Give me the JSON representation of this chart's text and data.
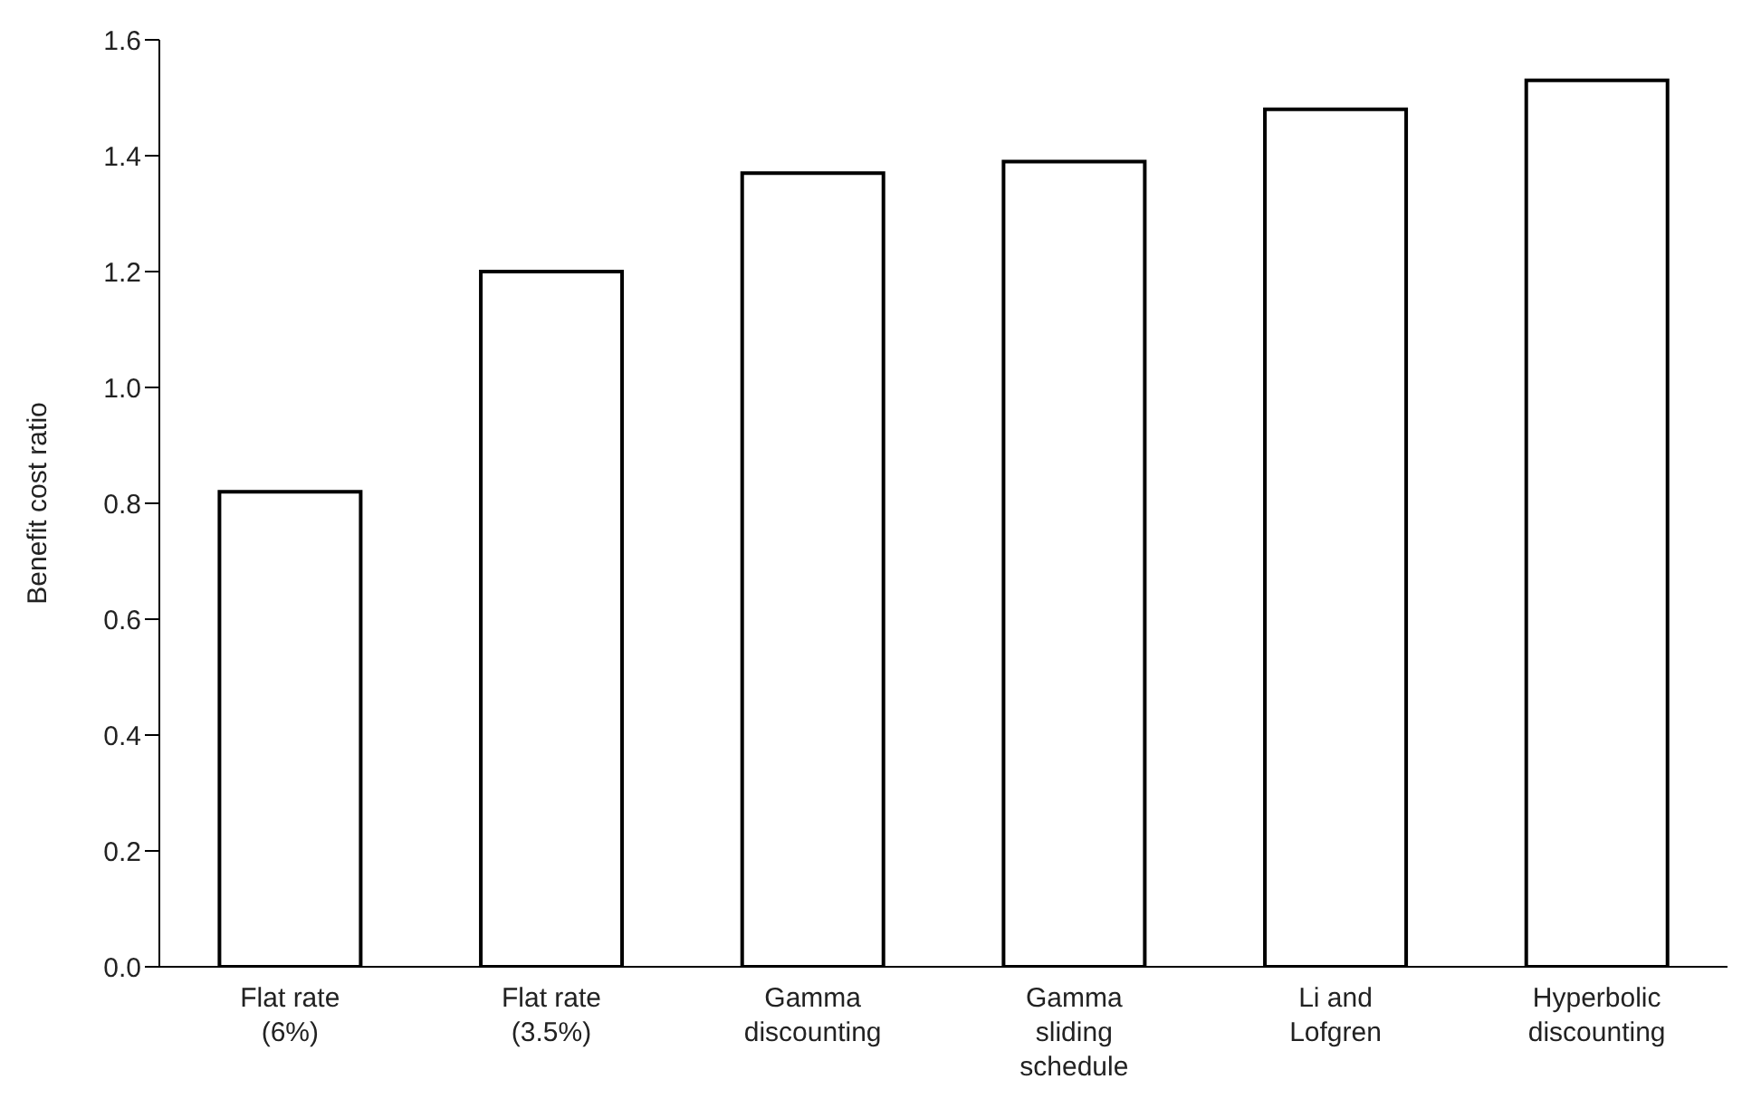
{
  "chart_data": {
    "type": "bar",
    "ylabel": "Benefit cost ratio",
    "categories": [
      "Flat rate\n(6%)",
      "Flat rate\n(3.5%)",
      "Gamma\ndiscounting",
      "Gamma\nsliding\nschedule",
      "Li and\nLofgren",
      "Hyperbolic\ndiscounting"
    ],
    "values": [
      0.82,
      1.2,
      1.37,
      1.39,
      1.48,
      1.53
    ],
    "color": "#ffffff",
    "ylim": [
      0,
      1.6
    ],
    "yticks": [
      {
        "value": 0,
        "label": "0.0"
      },
      {
        "value": 0.2,
        "label": "0.2"
      },
      {
        "value": 0.4,
        "label": "0.4"
      },
      {
        "value": 0.6,
        "label": "0.6"
      },
      {
        "value": 0.8,
        "label": "0.8"
      },
      {
        "value": 1,
        "label": "1.0"
      },
      {
        "value": 1.2,
        "label": "1.2"
      },
      {
        "value": 1.4,
        "label": "1.4"
      },
      {
        "value": 1.6,
        "label": "1.6"
      }
    ],
    "grid": false,
    "legend": false
  }
}
